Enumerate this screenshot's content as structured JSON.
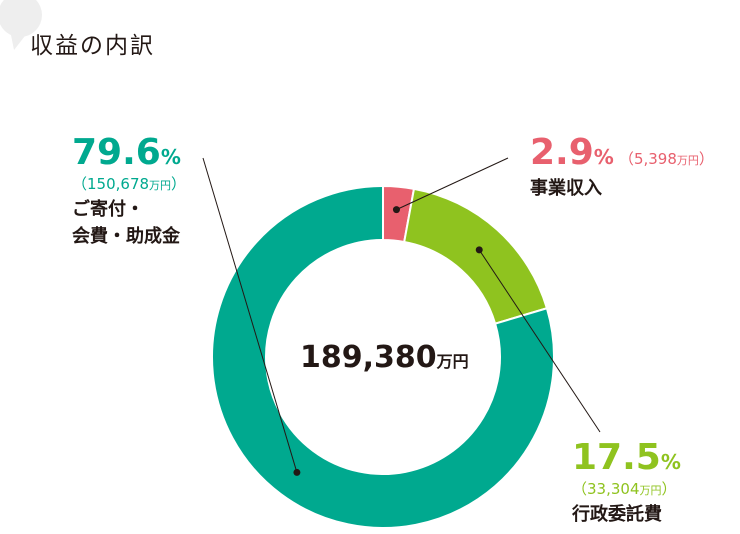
{
  "title": "収益の内訳",
  "chart_data": {
    "type": "pie",
    "donut": true,
    "total": {
      "value": "189,380",
      "unit": "万円"
    },
    "slices": [
      {
        "name": "事業収入",
        "percent": 2.9,
        "percent_label": "2.9",
        "amount": "5,398",
        "color": "#e8606e"
      },
      {
        "name": "行政委託費",
        "percent": 17.5,
        "percent_label": "17.5",
        "amount": "33,304",
        "color": "#8fc31f"
      },
      {
        "name": "ご寄付・会費・助成金",
        "name_lines": [
          "ご寄付・",
          "会費・助成金"
        ],
        "percent": 79.6,
        "percent_label": "79.6",
        "amount": "150,678",
        "color": "#00a98f"
      }
    ],
    "percent_sign": "%",
    "amount_unit": "万円"
  }
}
